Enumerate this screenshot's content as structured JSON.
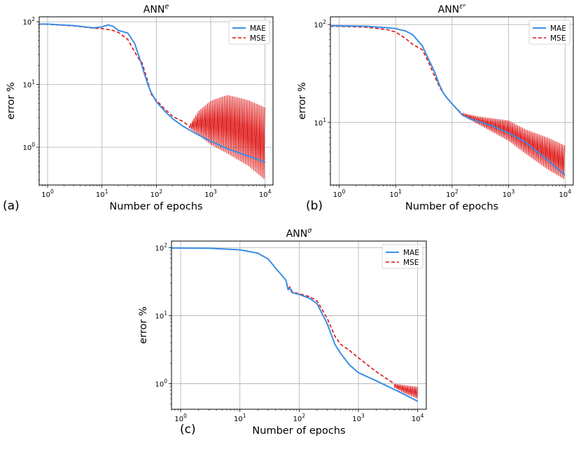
{
  "panels": [
    {
      "letter": "(a)"
    },
    {
      "letter": "(b)"
    },
    {
      "letter": "(c)"
    }
  ],
  "colors": {
    "mae": "#3b8ee6",
    "mse": "#dd1111",
    "grid": "#b0b0b0"
  },
  "chart_data": [
    {
      "type": "line",
      "title": "ANN",
      "title_sup": "e",
      "xlabel": "Number of epochs",
      "ylabel": "error %",
      "xscale": "log",
      "yscale": "log",
      "xlim": [
        0.7,
        14000
      ],
      "ylim": [
        0.25,
        120
      ],
      "xticks": [
        1,
        10,
        100,
        1000,
        10000
      ],
      "xtick_labels": [
        "10^0",
        "10^1",
        "10^2",
        "10^3",
        "10^4"
      ],
      "yticks": [
        1,
        10,
        100
      ],
      "ytick_labels": [
        "10^0",
        "10^1",
        "10^2"
      ],
      "grid": true,
      "legend_position": "top-right",
      "series": [
        {
          "name": "MAE",
          "style": "solid",
          "x": [
            0.7,
            1,
            3,
            7,
            10,
            13,
            16,
            20,
            30,
            40,
            50,
            60,
            70,
            80,
            100,
            150,
            200,
            300,
            500,
            1000,
            2000,
            5000,
            10000
          ],
          "y": [
            92,
            92,
            87,
            80,
            83,
            89,
            85,
            73,
            66,
            45,
            25,
            15,
            10,
            7.5,
            5.3,
            3.6,
            2.85,
            2.2,
            1.7,
            1.25,
            0.95,
            0.72,
            0.58
          ]
        },
        {
          "name": "MSE",
          "style": "dashed",
          "x": [
            0.7,
            1,
            3,
            7,
            10,
            15,
            20,
            30,
            40,
            50,
            55,
            60,
            70,
            80,
            100,
            150,
            200,
            300,
            400
          ],
          "y": [
            91,
            91,
            86,
            79,
            78,
            74,
            68,
            52,
            33,
            24,
            22,
            17,
            11,
            7,
            5.6,
            3.9,
            3.1,
            2.6,
            2.2
          ],
          "oscillation": {
            "x_start": 400,
            "x_end": 10000,
            "upper": [
              [
                400,
                2.2
              ],
              [
                600,
                3.8
              ],
              [
                1000,
                5.5
              ],
              [
                2000,
                6.8
              ],
              [
                3000,
                6.3
              ],
              [
                5000,
                5.6
              ],
              [
                10000,
                4.3
              ]
            ],
            "lower": [
              [
                400,
                2.05
              ],
              [
                1000,
                1.1
              ],
              [
                2000,
                0.8
              ],
              [
                5000,
                0.5
              ],
              [
                10000,
                0.3
              ]
            ]
          }
        }
      ]
    },
    {
      "type": "line",
      "title": "ANN",
      "title_sup": "εᵖ",
      "xlabel": "Number of epochs",
      "ylabel": "error %",
      "xscale": "log",
      "yscale": "log",
      "xlim": [
        0.7,
        14000
      ],
      "ylim": [
        2.3,
        120
      ],
      "xticks": [
        1,
        10,
        100,
        1000,
        10000
      ],
      "xtick_labels": [
        "10^0",
        "10^1",
        "10^2",
        "10^3",
        "10^4"
      ],
      "yticks": [
        10,
        100
      ],
      "ytick_labels": [
        "10^1",
        "10^2"
      ],
      "grid": true,
      "legend_position": "top-right",
      "series": [
        {
          "name": "MAE",
          "style": "solid",
          "x": [
            0.7,
            1,
            3,
            7,
            10,
            15,
            20,
            30,
            40,
            50,
            60,
            70,
            80,
            100,
            150,
            200,
            300,
            500,
            1000,
            2000,
            5000,
            10000
          ],
          "y": [
            97,
            97,
            96,
            93,
            91,
            86,
            79,
            60,
            42,
            32,
            24,
            20,
            18,
            15.5,
            12,
            11,
            10.2,
            9.3,
            7.8,
            6.3,
            4.1,
            2.9
          ]
        },
        {
          "name": "MSE",
          "style": "dashed",
          "x": [
            0.7,
            1,
            3,
            7,
            10,
            15,
            20,
            30,
            40,
            50,
            60,
            70,
            80,
            100,
            150
          ],
          "y": [
            96,
            96,
            94,
            89,
            84,
            72,
            63,
            55,
            39,
            29,
            23,
            20,
            18,
            15.5,
            12.2
          ],
          "oscillation": {
            "x_start": 150,
            "x_end": 10000,
            "upper": [
              [
                150,
                12.5
              ],
              [
                300,
                11.5
              ],
              [
                1000,
                10.5
              ],
              [
                2000,
                8.5
              ],
              [
                5000,
                7
              ],
              [
                10000,
                5.8
              ]
            ],
            "lower": [
              [
                150,
                11.8
              ],
              [
                300,
                9.5
              ],
              [
                1000,
                6.5
              ],
              [
                2000,
                4.8
              ],
              [
                5000,
                3.3
              ],
              [
                10000,
                2.6
              ]
            ]
          }
        }
      ]
    },
    {
      "type": "line",
      "title": "ANN",
      "title_sup": "σ",
      "xlabel": "Number of epochs",
      "ylabel": "error %",
      "xscale": "log",
      "yscale": "log",
      "xlim": [
        0.7,
        14000
      ],
      "ylim": [
        0.42,
        125
      ],
      "xticks": [
        1,
        10,
        100,
        1000,
        10000
      ],
      "xtick_labels": [
        "10^0",
        "10^1",
        "10^2",
        "10^3",
        "10^4"
      ],
      "yticks": [
        1,
        10,
        100
      ],
      "ytick_labels": [
        "10^0",
        "10^1",
        "10^2"
      ],
      "grid": true,
      "legend_position": "top-right",
      "series": [
        {
          "name": "MAE",
          "style": "solid",
          "x": [
            0.7,
            1,
            3,
            10,
            20,
            30,
            40,
            50,
            60,
            65,
            70,
            75,
            80,
            100,
            150,
            200,
            300,
            400,
            500,
            700,
            1000,
            2000,
            5000,
            10000
          ],
          "y": [
            99,
            99,
            98,
            93,
            83,
            68,
            50,
            40,
            33,
            24,
            25.5,
            22,
            21.5,
            20.5,
            18,
            15,
            7.5,
            3.8,
            2.8,
            1.9,
            1.45,
            1.1,
            0.75,
            0.55
          ]
        },
        {
          "name": "MSE",
          "style": "dashed",
          "x": [
            0.7,
            1,
            3,
            10,
            20,
            30,
            40,
            50,
            60,
            65,
            70,
            75,
            80,
            100,
            150,
            200,
            300,
            400,
            500,
            700,
            1000,
            2000,
            4000
          ],
          "y": [
            99,
            99,
            98,
            93,
            83,
            68,
            50,
            40,
            33,
            25,
            26.5,
            23,
            22,
            21,
            19,
            16.5,
            9,
            5,
            3.8,
            3.1,
            2.4,
            1.5,
            1.0
          ],
          "oscillation": {
            "x_start": 4000,
            "x_end": 10000,
            "upper": [
              [
                4000,
                1.0
              ],
              [
                6000,
                0.95
              ],
              [
                10000,
                0.9
              ]
            ],
            "lower": [
              [
                4000,
                0.88
              ],
              [
                6000,
                0.72
              ],
              [
                10000,
                0.6
              ]
            ]
          }
        }
      ]
    }
  ]
}
